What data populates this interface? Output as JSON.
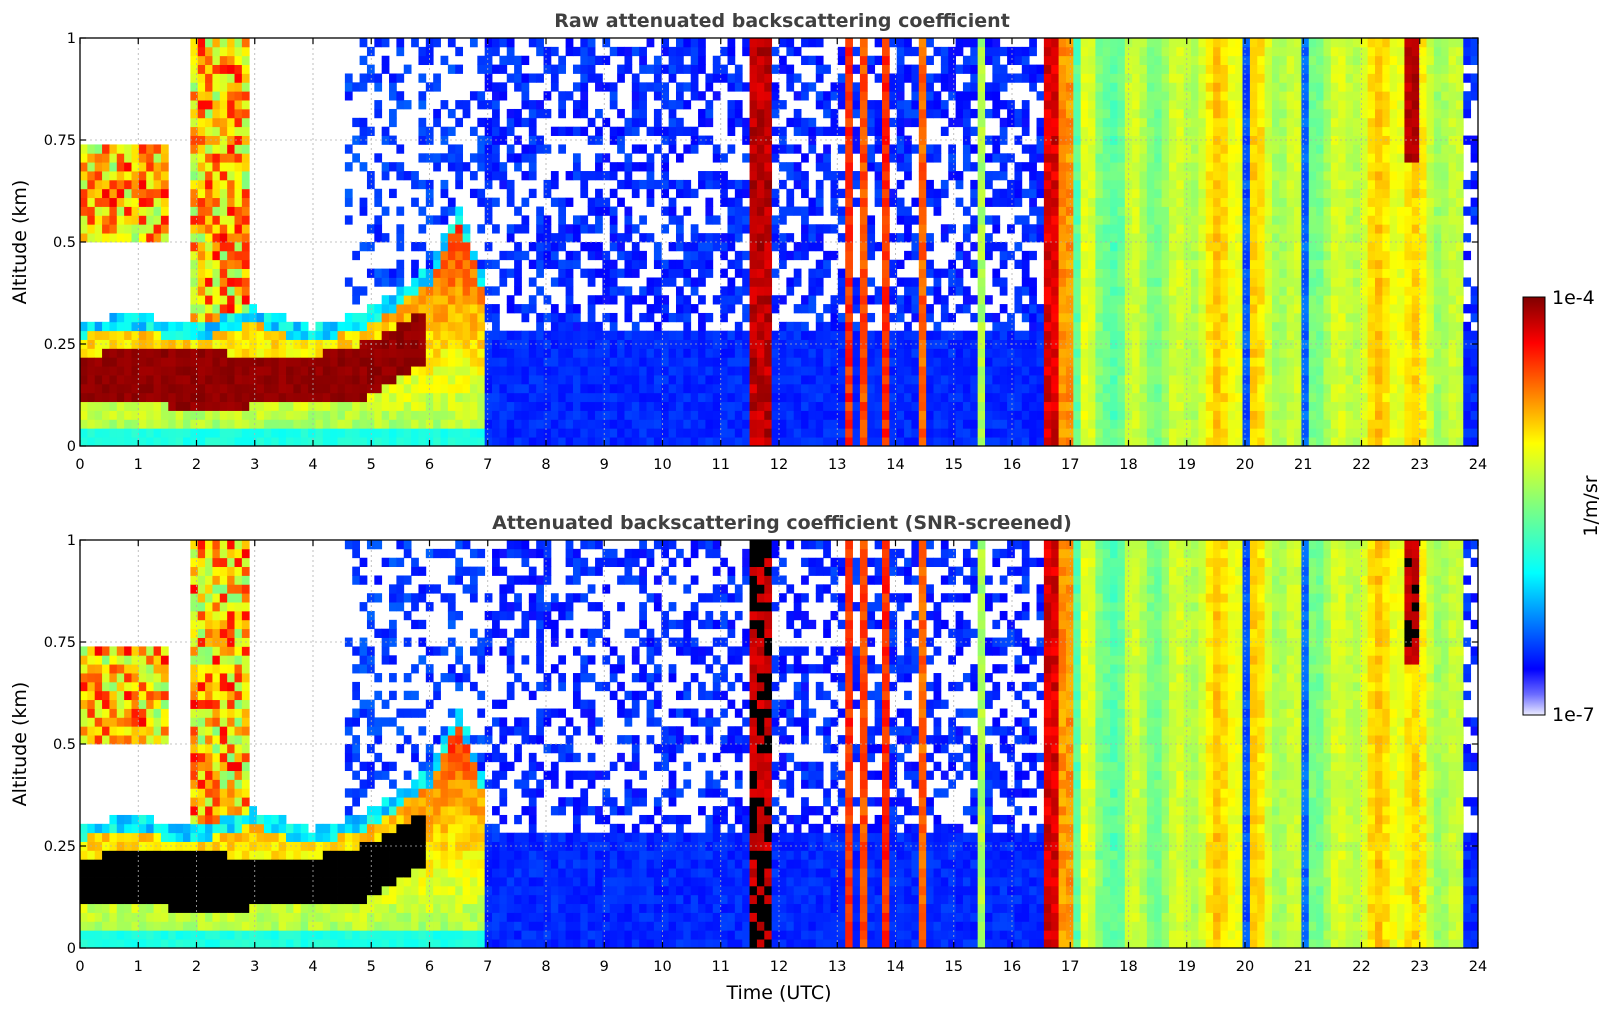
{
  "chart_data": [
    {
      "type": "heatmap",
      "title": "Raw attenuated backscattering coefficient",
      "xlabel": "",
      "ylabel": "Altitude (km)",
      "xlim": [
        0,
        24
      ],
      "ylim": [
        0,
        1
      ],
      "xticks": [
        "0",
        "1",
        "2",
        "3",
        "4",
        "5",
        "6",
        "7",
        "8",
        "9",
        "10",
        "11",
        "12",
        "13",
        "14",
        "15",
        "16",
        "17",
        "18",
        "19",
        "20",
        "21",
        "22",
        "23",
        "24"
      ],
      "yticks": [
        {
          "value": 0,
          "label": "0"
        },
        {
          "value": 0.25,
          "label": "0.25"
        },
        {
          "value": 0.5,
          "label": "0.5"
        },
        {
          "value": 0.75,
          "label": "0.75"
        },
        {
          "value": 1,
          "label": "1"
        }
      ],
      "grid": true,
      "colorscale": "jet",
      "log_color": true,
      "colorbar": {
        "min_label": "1e-7",
        "max_label": "1e-4",
        "label": "1/m/sr"
      },
      "features": [
        {
          "name": "boundary layer aerosol top",
          "t": [
            0,
            1,
            2,
            3,
            4,
            5,
            6,
            6.5,
            7
          ],
          "z": [
            0.27,
            0.28,
            0.26,
            0.3,
            0.25,
            0.3,
            0.4,
            0.5,
            0.3
          ]
        },
        {
          "name": "dense layer core",
          "t": [
            0,
            1,
            2,
            3,
            4,
            5,
            5.8
          ],
          "z_low": [
            0.1,
            0.12,
            0.08,
            0.1,
            0.1,
            0.12,
            0.2
          ],
          "z_high": [
            0.22,
            0.24,
            0.24,
            0.22,
            0.22,
            0.26,
            0.32
          ]
        },
        {
          "name": "high-signal bands",
          "t_ranges": [
            [
              11.45,
              11.85
            ],
            [
              13.2,
              13.55
            ],
            [
              13.75,
              13.95
            ],
            [
              14.35,
              14.55
            ],
            [
              15.4,
              15.55
            ],
            [
              16.55,
              17.0
            ],
            [
              17.8,
              23.7
            ]
          ]
        }
      ]
    },
    {
      "type": "heatmap",
      "title": "Attenuated backscattering coefficient (SNR-screened)",
      "xlabel": "Time (UTC)",
      "ylabel": "Altitude (km)",
      "xlim": [
        0,
        24
      ],
      "ylim": [
        0,
        1
      ],
      "xticks": [
        "0",
        "1",
        "2",
        "3",
        "4",
        "5",
        "6",
        "7",
        "8",
        "9",
        "10",
        "11",
        "12",
        "13",
        "14",
        "15",
        "16",
        "17",
        "18",
        "19",
        "20",
        "21",
        "22",
        "23",
        "24"
      ],
      "yticks": [
        {
          "value": 0,
          "label": "0"
        },
        {
          "value": 0.25,
          "label": "0.25"
        },
        {
          "value": 0.5,
          "label": "0.5"
        },
        {
          "value": 0.75,
          "label": "0.75"
        },
        {
          "value": 1,
          "label": "1"
        }
      ],
      "grid": true,
      "colorscale": "jet",
      "log_color": true,
      "saturated_color": "#000000",
      "colorbar": {
        "min_label": "1e-7",
        "max_label": "1e-4",
        "label": "1/m/sr"
      }
    }
  ]
}
